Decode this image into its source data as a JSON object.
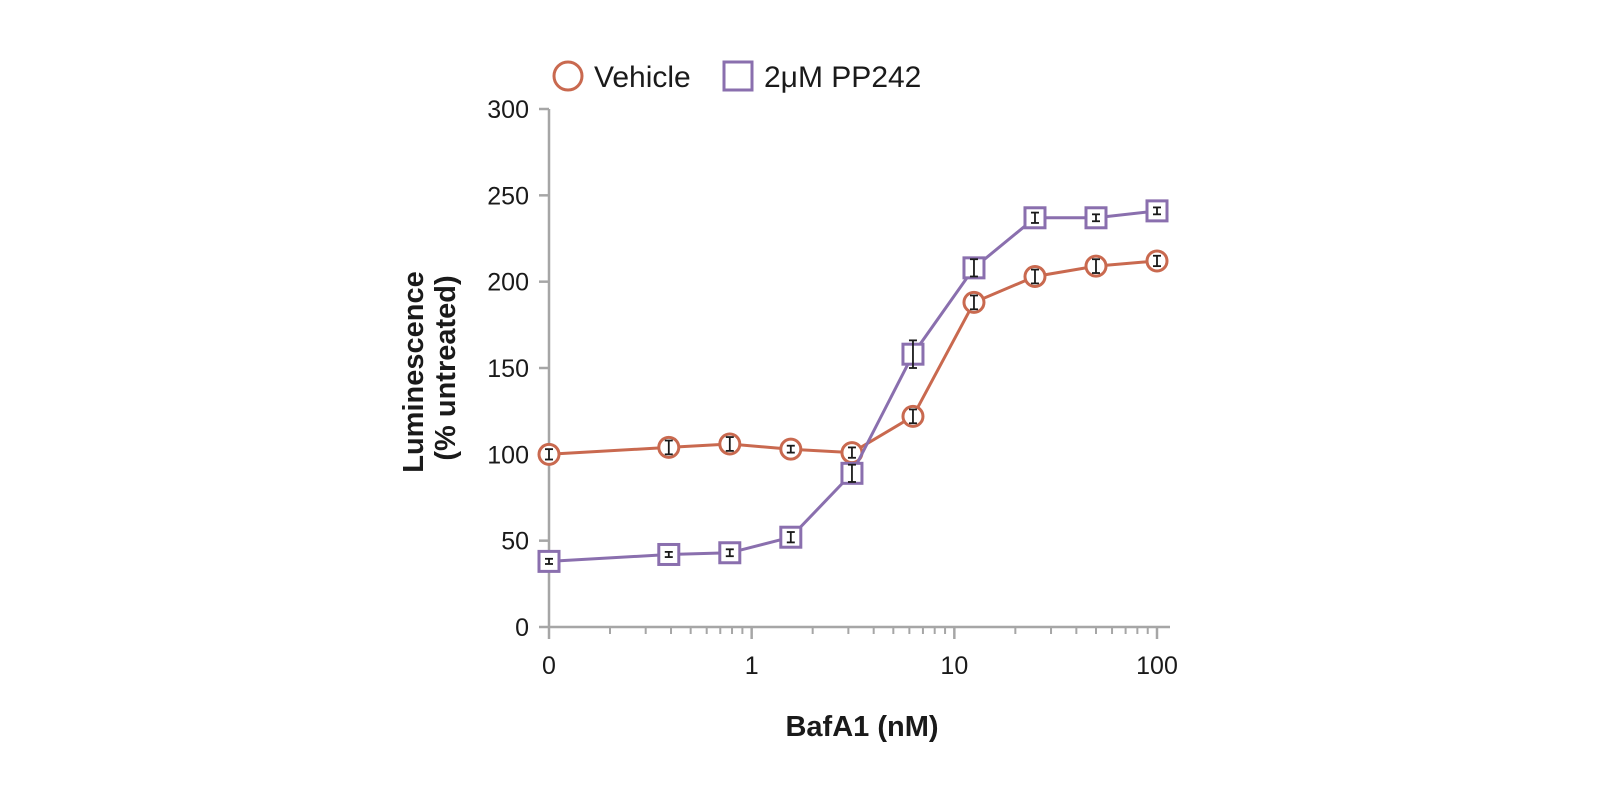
{
  "chart_data": {
    "type": "line",
    "title": "",
    "xlabel": "BafA1 (nM)",
    "ylabel": [
      "Luminescence",
      "(% untreated)"
    ],
    "x_scale": "log",
    "x_note": "0 plotted at the first decade position (0.1 nM)",
    "xlim": [
      0.1,
      120
    ],
    "ylim": [
      0,
      300
    ],
    "x_ticks": [
      {
        "value": 0.1,
        "label": "0"
      },
      {
        "value": 1,
        "label": "1"
      },
      {
        "value": 10,
        "label": "10"
      },
      {
        "value": 100,
        "label": "100"
      }
    ],
    "y_ticks": [
      {
        "value": 0,
        "label": "0"
      },
      {
        "value": 50,
        "label": "50"
      },
      {
        "value": 100,
        "label": "100"
      },
      {
        "value": 150,
        "label": "150"
      },
      {
        "value": 200,
        "label": "200"
      },
      {
        "value": 250,
        "label": "250"
      },
      {
        "value": 300,
        "label": "300"
      }
    ],
    "x": [
      0.1,
      0.39,
      0.78,
      1.56,
      3.125,
      6.25,
      12.5,
      25,
      50,
      100
    ],
    "series": [
      {
        "name": "Vehicle",
        "marker": "circle",
        "color": "#c9694f",
        "values": [
          100,
          104,
          106,
          103,
          101,
          122,
          188,
          203,
          209,
          212
        ],
        "errors": [
          3,
          4,
          4,
          2,
          3,
          4,
          4,
          4,
          4,
          3
        ]
      },
      {
        "name": "2μM PP242",
        "marker": "square",
        "color": "#8a6fae",
        "values": [
          38,
          42,
          43,
          52,
          89,
          158,
          208,
          237,
          237,
          241
        ],
        "errors": [
          1.5,
          1.5,
          2,
          3,
          5,
          8,
          5,
          3,
          2,
          2
        ]
      }
    ],
    "legend": {
      "position": "top-center"
    },
    "grid": false
  }
}
